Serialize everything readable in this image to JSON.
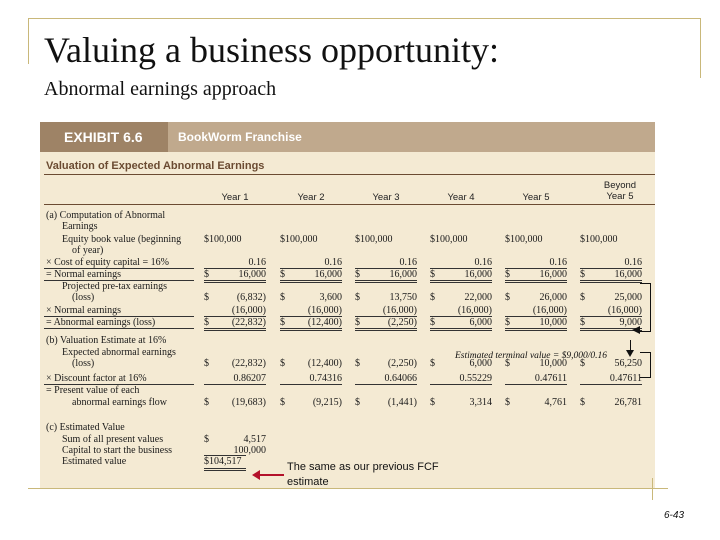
{
  "slide": {
    "title": "Valuing a business opportunity:",
    "subtitle": "Abnormal earnings approach",
    "page_number": "6-43",
    "callout": "The same as our previous FCF estimate"
  },
  "exhibit": {
    "tag": "EXHIBIT 6.6",
    "name": "BookWorm Franchise",
    "subhead": "Valuation of Expected Abnormal Earnings",
    "columns": [
      "Year 1",
      "Year 2",
      "Year 3",
      "Year 4",
      "Year 5",
      "Beyond Year 5"
    ],
    "terminal_note": "Estimated terminal value = $9,000/0.16",
    "labels": {
      "a_head": "(a)  Computation of Abnormal",
      "a_head2": "Earnings",
      "equity": "Equity book value (beginning",
      "equity2": "of year)",
      "coc": "× Cost of equity capital = 16%",
      "normal": "= Normal earnings",
      "proj": "Projected pre-tax earnings",
      "proj2": "(loss)",
      "normal2": "× Normal earnings",
      "abn": "= Abnormal earnings (loss)",
      "b_head": "(b)  Valuation Estimate at 16%",
      "exp": "Expected abnormal earnings",
      "exp2": "(loss)",
      "df": "× Discount factor at 16%",
      "pv": "= Present value of each",
      "pv2": "abnormal earnings flow",
      "c_head": "(c)  Estimated Value",
      "sum": "Sum of all present values",
      "cap": "Capital to start the business",
      "est": "Estimated value"
    },
    "rows": {
      "equity": [
        [
          "$100,000",
          ""
        ],
        [
          "$100,000",
          ""
        ],
        [
          "$100,000",
          ""
        ],
        [
          "$100,000",
          ""
        ],
        [
          "$100,000",
          ""
        ],
        [
          "$100,000",
          ""
        ]
      ],
      "coc": [
        [
          "",
          "0.16"
        ],
        [
          "",
          "0.16"
        ],
        [
          "",
          "0.16"
        ],
        [
          "",
          "0.16"
        ],
        [
          "",
          "0.16"
        ],
        [
          "",
          "0.16"
        ]
      ],
      "normal": [
        [
          "$",
          "16,000"
        ],
        [
          "$",
          "16,000"
        ],
        [
          "$",
          "16,000"
        ],
        [
          "$",
          "16,000"
        ],
        [
          "$",
          "16,000"
        ],
        [
          "$",
          "16,000"
        ]
      ],
      "proj": [
        [
          "$",
          "(6,832)"
        ],
        [
          "$",
          "3,600"
        ],
        [
          "$",
          "13,750"
        ],
        [
          "$",
          "22,000"
        ],
        [
          "$",
          "26,000"
        ],
        [
          "$",
          "25,000"
        ]
      ],
      "normal2": [
        [
          "",
          "(16,000)"
        ],
        [
          "",
          "(16,000)"
        ],
        [
          "",
          "(16,000)"
        ],
        [
          "",
          "(16,000)"
        ],
        [
          "",
          "(16,000)"
        ],
        [
          "",
          "(16,000)"
        ]
      ],
      "abn": [
        [
          "$",
          "(22,832)"
        ],
        [
          "$",
          "(12,400)"
        ],
        [
          "$",
          "(2,250)"
        ],
        [
          "$",
          "6,000"
        ],
        [
          "$",
          "10,000"
        ],
        [
          "$",
          "9,000"
        ]
      ],
      "exp": [
        [
          "$",
          "(22,832)"
        ],
        [
          "$",
          "(12,400)"
        ],
        [
          "$",
          "(2,250)"
        ],
        [
          "$",
          "6,000"
        ],
        [
          "$",
          "10,000"
        ],
        [
          "$",
          "56,250"
        ]
      ],
      "df": [
        [
          "",
          "0.86207"
        ],
        [
          "",
          "0.74316"
        ],
        [
          "",
          "0.64066"
        ],
        [
          "",
          "0.55229"
        ],
        [
          "",
          "0.47611"
        ],
        [
          "",
          "0.47611"
        ]
      ],
      "pv": [
        [
          "$",
          "(19,683)"
        ],
        [
          "$",
          "(9,215)"
        ],
        [
          "$",
          "(1,441)"
        ],
        [
          "$",
          "3,314"
        ],
        [
          "$",
          "4,761"
        ],
        [
          "$",
          "26,781"
        ]
      ]
    },
    "c_values": {
      "sum": [
        "$",
        "4,517"
      ],
      "cap": [
        "",
        "100,000"
      ],
      "est": [
        "$104,517",
        ""
      ]
    }
  }
}
